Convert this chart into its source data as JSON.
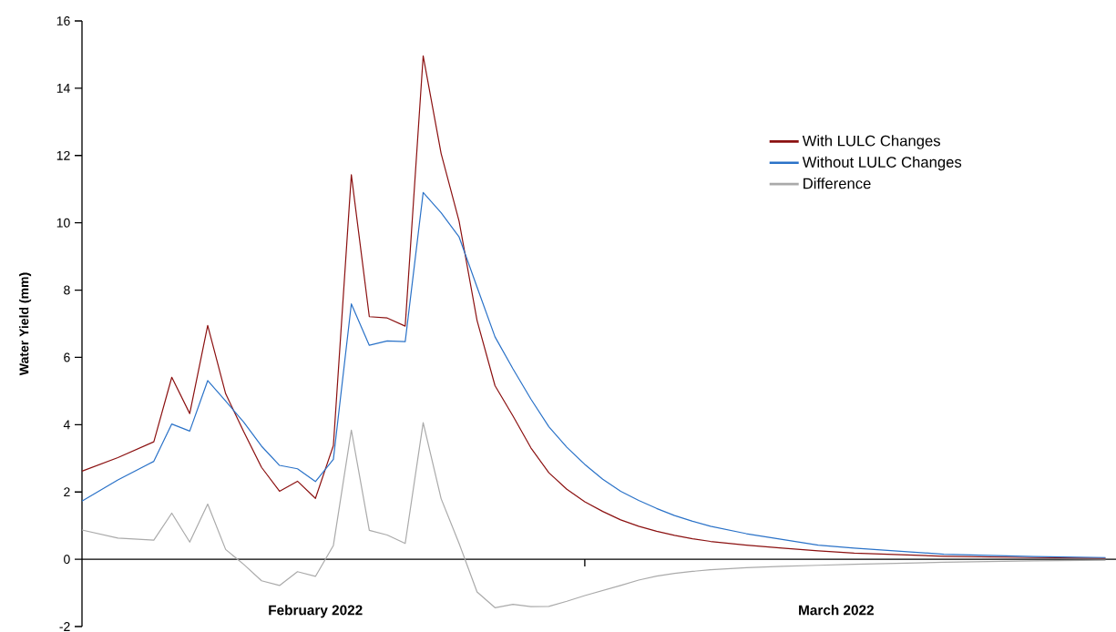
{
  "chart_data": {
    "type": "line",
    "ylabel": "Water Yield (mm)",
    "x": [
      "2022-02-01",
      "2022-02-03",
      "2022-02-05",
      "2022-02-06",
      "2022-02-07",
      "2022-02-08",
      "2022-02-09",
      "2022-02-10",
      "2022-02-11",
      "2022-02-12",
      "2022-02-13",
      "2022-02-14",
      "2022-02-15",
      "2022-02-16",
      "2022-02-17",
      "2022-02-18",
      "2022-02-19",
      "2022-02-20",
      "2022-02-21",
      "2022-02-22",
      "2022-02-23",
      "2022-02-24",
      "2022-02-25",
      "2022-02-26",
      "2022-02-27",
      "2022-02-28",
      "2022-03-01",
      "2022-03-02",
      "2022-03-03",
      "2022-03-04",
      "2022-03-05",
      "2022-03-06",
      "2022-03-07",
      "2022-03-08",
      "2022-03-10",
      "2022-03-12",
      "2022-03-14",
      "2022-03-16",
      "2022-03-21",
      "2022-03-26",
      "2022-03-30"
    ],
    "series": [
      {
        "name": "With LULC Changes",
        "color": "#8b1010",
        "values": [
          2.62,
          3.02,
          3.49,
          5.41,
          4.33,
          6.95,
          4.92,
          3.8,
          2.73,
          2.02,
          2.32,
          1.81,
          3.38,
          11.43,
          7.21,
          7.17,
          6.93,
          14.96,
          12.06,
          10.05,
          7.1,
          5.16,
          4.26,
          3.31,
          2.57,
          2.08,
          1.71,
          1.42,
          1.17,
          0.98,
          0.83,
          0.71,
          0.61,
          0.53,
          0.42,
          0.33,
          0.25,
          0.18,
          0.09,
          0.05,
          0.03
        ]
      },
      {
        "name": "Without LULC Changes",
        "color": "#2a72c8",
        "values": [
          1.73,
          2.36,
          2.91,
          4.02,
          3.81,
          5.31,
          4.7,
          4.08,
          3.36,
          2.79,
          2.69,
          2.31,
          2.97,
          7.59,
          6.36,
          6.49,
          6.47,
          10.9,
          10.3,
          9.58,
          8.09,
          6.61,
          5.66,
          4.76,
          3.94,
          3.33,
          2.82,
          2.38,
          2.02,
          1.75,
          1.51,
          1.3,
          1.13,
          0.98,
          0.76,
          0.59,
          0.42,
          0.33,
          0.15,
          0.08,
          0.05
        ]
      },
      {
        "name": "Difference",
        "color": "#aaaaaa",
        "values": [
          0.87,
          0.63,
          0.57,
          1.37,
          0.51,
          1.64,
          0.29,
          -0.15,
          -0.64,
          -0.78,
          -0.37,
          -0.51,
          0.41,
          3.84,
          0.86,
          0.72,
          0.47,
          4.06,
          1.8,
          0.47,
          -0.97,
          -1.44,
          -1.34,
          -1.41,
          -1.4,
          -1.25,
          -1.08,
          -0.93,
          -0.78,
          -0.62,
          -0.5,
          -0.42,
          -0.36,
          -0.31,
          -0.25,
          -0.21,
          -0.18,
          -0.15,
          -0.09,
          -0.05,
          -0.03
        ]
      }
    ],
    "xlim": [
      "2022-02-01",
      "2022-03-30T14:00"
    ],
    "xticks": [
      {
        "value": "2022-02-14",
        "label": "February 2022"
      },
      {
        "value": "2022-03-01",
        "label": null
      },
      {
        "value": "2022-03-15",
        "label": "March 2022"
      }
    ],
    "ylim": [
      -2,
      16
    ],
    "yticks": [
      -2,
      0,
      2,
      4,
      6,
      8,
      10,
      12,
      14,
      16
    ],
    "legend": "top right",
    "marker": "none",
    "line_style": "solid"
  }
}
